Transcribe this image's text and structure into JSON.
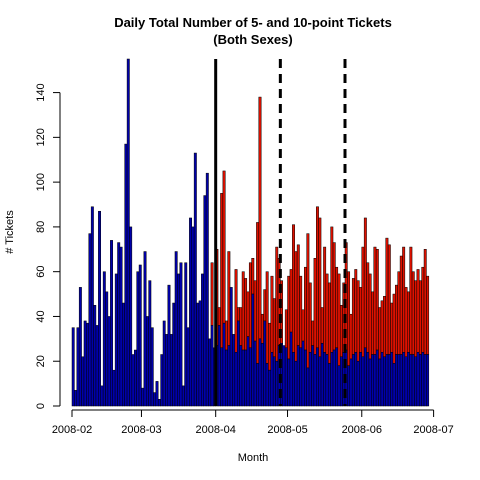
{
  "chart_data": {
    "type": "bar",
    "title": "Daily Total Number of 5- and 10-point Tickets",
    "subtitle": "(Both Sexes)",
    "xlabel": "Month",
    "ylabel": "# Tickets",
    "ylim": [
      0,
      155
    ],
    "xlim": [
      "2008-02-01",
      "2008-07-02"
    ],
    "y_ticks": [
      0,
      20,
      40,
      60,
      80,
      100,
      120,
      140
    ],
    "x_ticks": [
      "2008-02",
      "2008-03",
      "2008-04",
      "2008-05",
      "2008-06",
      "2008-07"
    ],
    "grid": false,
    "colors": {
      "blue": "#0000aa",
      "red": "#dd1100",
      "stroke": "#000000"
    },
    "vertical_lines": [
      {
        "date": "2008-04-01",
        "style": "solid"
      },
      {
        "date": "2008-04-28",
        "style": "dashed"
      },
      {
        "date": "2008-05-25",
        "style": "dashed"
      }
    ],
    "series_blue": [
      35,
      7,
      35,
      53,
      22,
      38,
      37,
      77,
      89,
      45,
      36,
      87,
      9,
      60,
      51,
      40,
      74,
      16,
      59,
      73,
      71,
      46,
      117,
      155,
      80,
      23,
      25,
      60,
      63,
      8,
      69,
      40,
      56,
      35,
      6,
      11,
      3,
      23,
      38,
      32,
      54,
      32,
      46,
      69,
      59,
      64,
      9,
      64,
      35,
      84,
      80,
      113,
      46,
      47,
      59,
      94,
      104,
      30,
      36,
      26,
      27,
      36,
      26,
      37,
      25,
      27,
      53,
      32,
      24,
      38,
      27,
      25,
      25,
      31,
      26,
      50,
      29,
      19,
      30,
      28,
      38,
      19,
      16,
      24,
      22,
      20,
      27,
      28,
      27,
      26,
      21,
      33,
      24,
      20,
      27,
      26,
      29,
      25,
      17,
      24,
      27,
      23,
      26,
      22,
      28,
      24,
      23,
      19,
      24,
      25,
      26,
      18,
      22,
      24,
      25,
      18,
      21,
      23,
      24,
      20,
      24,
      22,
      26,
      24,
      21,
      23,
      23,
      25,
      21,
      24,
      22,
      23,
      23,
      24,
      19,
      23,
      23,
      23,
      24,
      22,
      24,
      23,
      23,
      22,
      24,
      23,
      24,
      23,
      23
    ],
    "series_total": [
      35,
      7,
      35,
      53,
      22,
      38,
      37,
      77,
      89,
      45,
      36,
      87,
      9,
      60,
      51,
      40,
      74,
      16,
      59,
      73,
      71,
      46,
      117,
      155,
      80,
      23,
      25,
      60,
      63,
      8,
      69,
      40,
      56,
      35,
      6,
      11,
      3,
      23,
      38,
      32,
      54,
      32,
      46,
      69,
      59,
      64,
      9,
      64,
      35,
      84,
      80,
      113,
      46,
      47,
      59,
      94,
      104,
      30,
      64,
      14,
      70,
      44,
      95,
      105,
      38,
      69,
      41,
      28,
      61,
      44,
      44,
      60,
      57,
      51,
      64,
      66,
      56,
      82,
      138,
      41,
      52,
      60,
      37,
      58,
      48,
      71,
      66,
      56,
      25,
      43,
      58,
      61,
      81,
      69,
      72,
      58,
      43,
      62,
      77,
      55,
      38,
      66,
      89,
      84,
      44,
      71,
      59,
      55,
      80,
      73,
      62,
      59,
      45,
      55,
      73,
      60,
      41,
      57,
      61,
      56,
      53,
      71,
      84,
      64,
      59,
      51,
      71,
      70,
      44,
      47,
      49,
      75,
      72,
      46,
      50,
      54,
      60,
      67,
      71,
      53,
      51,
      71,
      60,
      56,
      61,
      56,
      62,
      70,
      58,
      67,
      52,
      72,
      64,
      59,
      71,
      71
    ]
  }
}
